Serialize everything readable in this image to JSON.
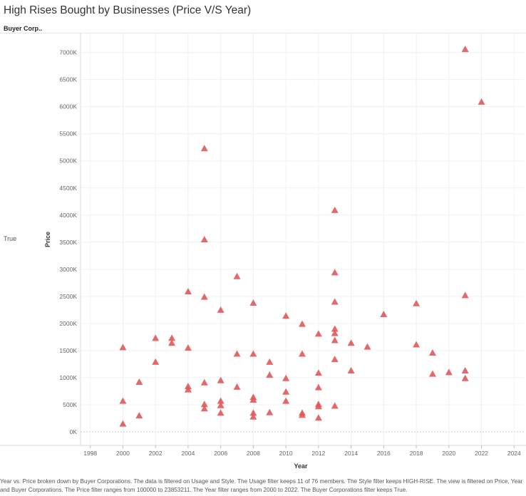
{
  "header": {
    "title": "High Rises Bought by Businesses (Price V/S Year)",
    "row_field_label": "Buyer Corp..",
    "row_value": "True"
  },
  "caption": "Year vs. Price broken down by Buyer Corporations. The data is filtered on Usage and Style. The Usage filter keeps 11 of 76 members. The Style filter keeps HIGH-RISE. The view is filtered on Price, Year and Buyer Corporations. The Price filter ranges from 100000 to 23853211. The Year filter ranges from 2000 to 2022. The Buyer Corporations filter keeps True.",
  "chart_data": {
    "type": "scatter",
    "title": "High Rises Bought by Businesses (Price V/S Year)",
    "xlabel": "Year",
    "ylabel": "Price",
    "xlim": [
      1997.4,
      2024.6
    ],
    "ylim": [
      -250,
      7350
    ],
    "x_ticks": [
      1998,
      2000,
      2002,
      2004,
      2006,
      2008,
      2010,
      2012,
      2014,
      2016,
      2018,
      2020,
      2022,
      2024
    ],
    "y_ticks": [
      0,
      500,
      1000,
      1500,
      2000,
      2500,
      3000,
      3500,
      4000,
      4500,
      5000,
      5500,
      6000,
      6500,
      7000
    ],
    "y_tick_labels": [
      "0K",
      "500K",
      "1000K",
      "1500K",
      "2000K",
      "2500K",
      "3000K",
      "3500K",
      "4000K",
      "4500K",
      "5000K",
      "5500K",
      "6000K",
      "6500K",
      "7000K"
    ],
    "grid": true,
    "marker": "triangle",
    "color": "#e15759",
    "points": [
      {
        "x": 2000,
        "y": 1560
      },
      {
        "x": 2000,
        "y": 570
      },
      {
        "x": 2000,
        "y": 150
      },
      {
        "x": 2001,
        "y": 920
      },
      {
        "x": 2001,
        "y": 300
      },
      {
        "x": 2002,
        "y": 1730
      },
      {
        "x": 2002,
        "y": 1290
      },
      {
        "x": 2003,
        "y": 1730
      },
      {
        "x": 2003,
        "y": 1640
      },
      {
        "x": 2004,
        "y": 2590
      },
      {
        "x": 2004,
        "y": 1550
      },
      {
        "x": 2004,
        "y": 840
      },
      {
        "x": 2004,
        "y": 780
      },
      {
        "x": 2005,
        "y": 5230
      },
      {
        "x": 2005,
        "y": 3550
      },
      {
        "x": 2005,
        "y": 2490
      },
      {
        "x": 2005,
        "y": 910
      },
      {
        "x": 2005,
        "y": 510
      },
      {
        "x": 2005,
        "y": 430
      },
      {
        "x": 2006,
        "y": 2250
      },
      {
        "x": 2006,
        "y": 950
      },
      {
        "x": 2006,
        "y": 570
      },
      {
        "x": 2006,
        "y": 490
      },
      {
        "x": 2006,
        "y": 350
      },
      {
        "x": 2007,
        "y": 2870
      },
      {
        "x": 2007,
        "y": 1440
      },
      {
        "x": 2007,
        "y": 830
      },
      {
        "x": 2008,
        "y": 2380
      },
      {
        "x": 2008,
        "y": 1440
      },
      {
        "x": 2008,
        "y": 640
      },
      {
        "x": 2008,
        "y": 590
      },
      {
        "x": 2008,
        "y": 350
      },
      {
        "x": 2008,
        "y": 280
      },
      {
        "x": 2009,
        "y": 1290
      },
      {
        "x": 2009,
        "y": 1050
      },
      {
        "x": 2009,
        "y": 360
      },
      {
        "x": 2010,
        "y": 2140
      },
      {
        "x": 2010,
        "y": 990
      },
      {
        "x": 2010,
        "y": 740
      },
      {
        "x": 2010,
        "y": 570
      },
      {
        "x": 2011,
        "y": 1990
      },
      {
        "x": 2011,
        "y": 1440
      },
      {
        "x": 2011,
        "y": 350
      },
      {
        "x": 2011,
        "y": 310
      },
      {
        "x": 2012,
        "y": 1810
      },
      {
        "x": 2012,
        "y": 1090
      },
      {
        "x": 2012,
        "y": 820
      },
      {
        "x": 2012,
        "y": 510
      },
      {
        "x": 2012,
        "y": 470
      },
      {
        "x": 2012,
        "y": 260
      },
      {
        "x": 2013,
        "y": 4090
      },
      {
        "x": 2013,
        "y": 2940
      },
      {
        "x": 2013,
        "y": 2400
      },
      {
        "x": 2013,
        "y": 1900
      },
      {
        "x": 2013,
        "y": 1820
      },
      {
        "x": 2013,
        "y": 1690
      },
      {
        "x": 2013,
        "y": 1340
      },
      {
        "x": 2013,
        "y": 480
      },
      {
        "x": 2014,
        "y": 1640
      },
      {
        "x": 2014,
        "y": 1130
      },
      {
        "x": 2015,
        "y": 1570
      },
      {
        "x": 2016,
        "y": 2170
      },
      {
        "x": 2018,
        "y": 2370
      },
      {
        "x": 2018,
        "y": 1610
      },
      {
        "x": 2019,
        "y": 1460
      },
      {
        "x": 2019,
        "y": 1070
      },
      {
        "x": 2020,
        "y": 1100
      },
      {
        "x": 2021,
        "y": 7060
      },
      {
        "x": 2021,
        "y": 2520
      },
      {
        "x": 2021,
        "y": 1130
      },
      {
        "x": 2021,
        "y": 990
      },
      {
        "x": 2022,
        "y": 6090
      }
    ]
  }
}
